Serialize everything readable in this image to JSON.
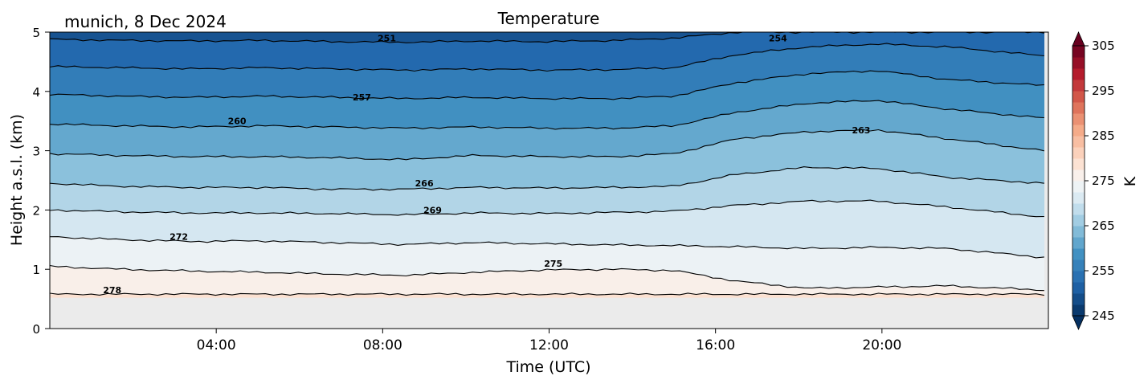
{
  "header": {
    "location_date": "munich, 8 Dec 2024",
    "title": "Temperature"
  },
  "chart_data": {
    "type": "heatmap",
    "subtype": "filled-contour with line contours",
    "title": "Temperature",
    "annotation": "munich, 8 Dec 2024",
    "xlabel": "Time (UTC)",
    "ylabel": "Height a.s.l. (km)",
    "x_ticks": [
      "04:00",
      "08:00",
      "12:00",
      "16:00",
      "20:00"
    ],
    "x_tick_hours": [
      4,
      8,
      12,
      16,
      20
    ],
    "xlim_hours": [
      0,
      24
    ],
    "y_ticks": [
      0,
      1,
      2,
      3,
      4,
      5
    ],
    "ylim": [
      0,
      5
    ],
    "no_data_below_km": 0.52,
    "colorbar": {
      "label": "K",
      "ticks": [
        245,
        255,
        265,
        275,
        285,
        295,
        305
      ],
      "range": [
        245,
        305
      ],
      "extend": "both",
      "colormap": "RdBu_r"
    },
    "contour_labels": [
      {
        "value": 251,
        "time_h": 8.1,
        "height_km": 4.9
      },
      {
        "value": 254,
        "time_h": 17.5,
        "height_km": 4.9
      },
      {
        "value": 257,
        "time_h": 7.5,
        "height_km": 3.9
      },
      {
        "value": 260,
        "time_h": 4.5,
        "height_km": 3.5
      },
      {
        "value": 263,
        "time_h": 19.5,
        "height_km": 3.35
      },
      {
        "value": 266,
        "time_h": 9.0,
        "height_km": 2.45
      },
      {
        "value": 269,
        "time_h": 9.2,
        "height_km": 2.0
      },
      {
        "value": 272,
        "time_h": 3.1,
        "height_km": 1.55
      },
      {
        "value": 275,
        "time_h": 12.1,
        "height_km": 1.1
      },
      {
        "value": 278,
        "time_h": 1.5,
        "height_km": 0.65
      }
    ],
    "contour_lines": [
      {
        "value": 278,
        "heights_km": [
          0.58,
          0.58,
          0.58,
          0.58,
          0.58,
          0.58,
          0.58,
          0.58,
          0.58,
          0.58,
          0.58,
          0.58,
          0.58,
          0.58,
          0.58
        ]
      },
      {
        "value": 275,
        "heights_km": [
          1.05,
          1.0,
          0.97,
          0.95,
          0.92,
          0.9,
          0.95,
          0.99,
          1.0,
          0.98,
          0.8,
          0.68,
          0.7,
          0.72,
          0.65
        ]
      },
      {
        "value": 272,
        "heights_km": [
          1.55,
          1.5,
          1.47,
          1.48,
          1.45,
          1.42,
          1.45,
          1.43,
          1.41,
          1.4,
          1.38,
          1.35,
          1.37,
          1.35,
          1.2
        ]
      },
      {
        "value": 269,
        "heights_km": [
          2.0,
          1.97,
          1.95,
          1.95,
          1.94,
          1.92,
          1.95,
          1.94,
          1.96,
          1.98,
          2.08,
          2.15,
          2.15,
          2.05,
          1.88
        ]
      },
      {
        "value": 266,
        "heights_km": [
          2.45,
          2.4,
          2.38,
          2.38,
          2.35,
          2.35,
          2.38,
          2.37,
          2.38,
          2.4,
          2.6,
          2.72,
          2.7,
          2.55,
          2.45
        ]
      },
      {
        "value": 263,
        "heights_km": [
          2.95,
          2.92,
          2.9,
          2.9,
          2.88,
          2.85,
          2.92,
          2.9,
          2.9,
          2.95,
          3.2,
          3.32,
          3.35,
          3.2,
          3.0
        ]
      },
      {
        "value": 260,
        "heights_km": [
          3.45,
          3.42,
          3.4,
          3.42,
          3.4,
          3.38,
          3.4,
          3.38,
          3.38,
          3.42,
          3.65,
          3.8,
          3.85,
          3.7,
          3.55
        ]
      },
      {
        "value": 257,
        "heights_km": [
          3.95,
          3.92,
          3.9,
          3.92,
          3.9,
          3.88,
          3.9,
          3.88,
          3.88,
          3.92,
          4.15,
          4.3,
          4.35,
          4.2,
          4.1
        ]
      },
      {
        "value": 254,
        "heights_km": [
          4.42,
          4.4,
          4.38,
          4.4,
          4.38,
          4.36,
          4.38,
          4.36,
          4.37,
          4.4,
          4.62,
          4.75,
          4.8,
          4.75,
          4.6
        ]
      },
      {
        "value": 251,
        "heights_km": [
          4.88,
          4.86,
          4.85,
          4.86,
          4.84,
          4.83,
          4.85,
          4.84,
          4.86,
          4.9,
          5.0,
          5.0,
          5.0,
          5.0,
          5.0
        ]
      }
    ],
    "contour_time_hours": [
      0,
      1.7,
      3.4,
      5.1,
      6.8,
      8.5,
      10.2,
      11.9,
      13.6,
      15.0,
      16.5,
      18.2,
      19.9,
      21.6,
      23.9
    ]
  }
}
